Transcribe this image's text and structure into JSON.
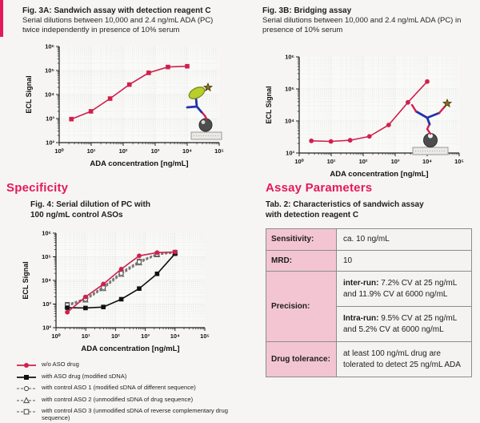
{
  "sections": {
    "specificity": "Specificity",
    "assay_parameters": "Assay Parameters"
  },
  "fig3a": {
    "title": "Fig. 3A: Sandwich assay with detection reagent C",
    "subtitle": "Serial dilutions between 10,000 and 2.4 ng/mL ADA (PC) twice independently in presence of 10% serum"
  },
  "fig3b": {
    "title": "Fig. 3B: Bridging assay",
    "subtitle": "Serial dilutions between 10,000 and 2.4 ng/mL ADA (PC) in presence of 10% serum"
  },
  "fig4": {
    "caption_line1": "Fig. 4: Serial dilution of PC with",
    "caption_line2": "100 ng/mL control ASOs"
  },
  "tab2": {
    "caption_line1": "Tab. 2: Characteristics of sandwich assay",
    "caption_line2": "with detection reagent C",
    "rows": [
      {
        "label": "Sensitivity:",
        "value": "ca. 10 ng/mL"
      },
      {
        "label": "MRD:",
        "value": "10"
      },
      {
        "label": "Precision:",
        "sub": [
          {
            "bold": "inter-run:",
            "text": " 7.2% CV at 25 ng/mL and 11.9% CV at 6000 ng/mL"
          },
          {
            "bold": "Intra-run:",
            "text": " 9.5% CV at 25 ng/mL and 5.2% CV at 6000 ng/mL"
          }
        ]
      },
      {
        "label": "Drug tolerance:",
        "value": "at least 100 ng/mL drug are tolerated to detect 25 ng/mL ADA"
      }
    ]
  },
  "colors": {
    "accent_pink": "#e4195c",
    "series_red": "#d0204c",
    "series_black": "#111111",
    "series_grey": "#777777",
    "table_header_pink": "#f3c5d2",
    "antibody_blue": "#2233aa",
    "reagent_green": "#b8cf2a"
  },
  "chart_data": [
    {
      "id": "fig3a",
      "type": "line",
      "title": "Sandwich assay with detection reagent C",
      "xlabel": "ADA concentration [ng/mL]",
      "ylabel": "ECL Signal",
      "xlim": [
        1,
        100000
      ],
      "ylim": [
        100,
        1000000
      ],
      "log_x": true,
      "log_y": true,
      "grid": true,
      "x": [
        2.4,
        9.8,
        39,
        156,
        625,
        2500,
        10000
      ],
      "series": [
        {
          "name": "PC serial dilution",
          "color": "#d0204c",
          "marker": "square-filled",
          "dash": "",
          "values": [
            950,
            2000,
            6800,
            26000,
            80000,
            140000,
            150000
          ]
        }
      ]
    },
    {
      "id": "fig3b",
      "type": "line",
      "title": "Bridging assay",
      "xlabel": "ADA concentration [ng/mL]",
      "ylabel": "ECL Signal",
      "xlim": [
        1,
        100000
      ],
      "ylim": [
        1000,
        1000000
      ],
      "log_x": true,
      "log_y": true,
      "grid": true,
      "x": [
        2.4,
        9.8,
        39,
        156,
        625,
        2500,
        10000
      ],
      "series": [
        {
          "name": "PC serial dilution",
          "color": "#d0204c",
          "marker": "circle-filled",
          "dash": "",
          "values": [
            2400,
            2300,
            2500,
            3300,
            7500,
            38000,
            170000
          ]
        }
      ]
    },
    {
      "id": "fig4",
      "type": "line",
      "title": "Serial dilution of PC with 100 ng/mL control ASOs",
      "xlabel": "ADA concentration [ng/mL]",
      "ylabel": "ECL Signal",
      "xlim": [
        1,
        100000
      ],
      "ylim": [
        100,
        1000000
      ],
      "log_x": true,
      "log_y": true,
      "grid": true,
      "legend_position": "below",
      "x": [
        2.4,
        9.8,
        39,
        156,
        625,
        2500,
        10000
      ],
      "series": [
        {
          "name": "w/o ASO drug",
          "color": "#d0204c",
          "marker": "circle-filled",
          "dash": "",
          "values": [
            450,
            2000,
            7000,
            30000,
            110000,
            150000,
            160000
          ]
        },
        {
          "name": "with ASO drug (modified sDNA)",
          "color": "#111111",
          "marker": "square-filled",
          "dash": "",
          "values": [
            700,
            680,
            750,
            1600,
            4500,
            19000,
            135000
          ]
        },
        {
          "name": "with control ASO 1 (modified sDNA of different sequence)",
          "color": "#777777",
          "marker": "circle-open",
          "dash": "3,2",
          "values": [
            900,
            1600,
            5000,
            20000,
            60000,
            128000,
            152000
          ]
        },
        {
          "name": "with control ASO 2 (unmodified sDNA of drug sequence)",
          "color": "#777777",
          "marker": "triangle-open",
          "dash": "3,2",
          "values": [
            830,
            1480,
            4500,
            18000,
            55000,
            122000,
            148000
          ]
        },
        {
          "name": "with control ASO 3 (unmodified sDNA of reverse complementary drug sequence)",
          "color": "#777777",
          "marker": "square-open",
          "dash": "3,2",
          "values": [
            960,
            1720,
            5500,
            22000,
            65000,
            132000,
            155000
          ]
        }
      ]
    }
  ]
}
